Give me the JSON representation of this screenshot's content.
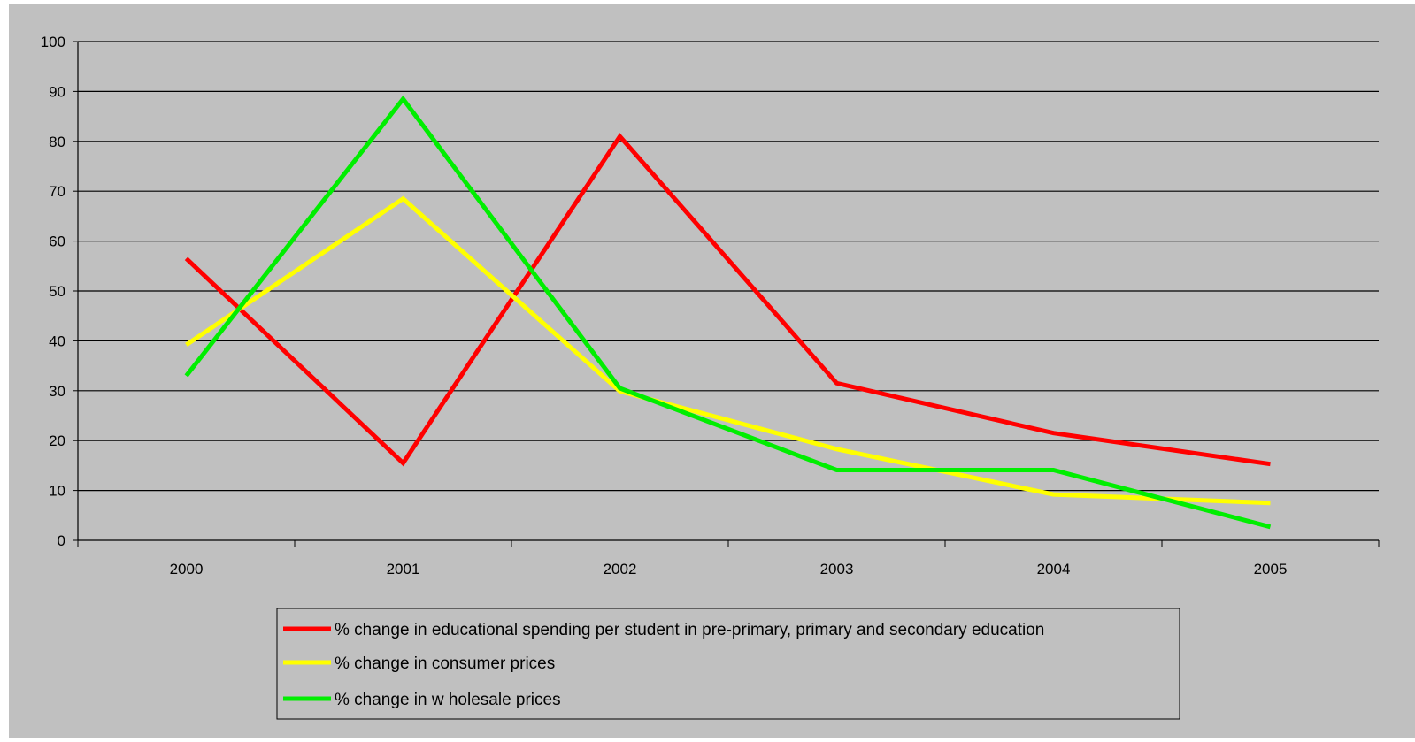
{
  "chart_data": {
    "type": "line",
    "categories": [
      "2000",
      "2001",
      "2002",
      "2003",
      "2004",
      "2005"
    ],
    "ylim": [
      0,
      100
    ],
    "yticks": [
      0,
      10,
      20,
      30,
      40,
      50,
      60,
      70,
      80,
      90,
      100
    ],
    "grid": true,
    "legend_position": "bottom",
    "plot_background": "#c0c0c0",
    "series": [
      {
        "name": "% change in educational spending per student in pre-primary, primary and secondary education",
        "color": "#ff0000",
        "values": [
          56.5,
          15.5,
          81.0,
          31.5,
          21.5,
          15.3
        ]
      },
      {
        "name": "% change in consumer prices",
        "color": "#ffff00",
        "values": [
          39.2,
          68.5,
          29.9,
          18.3,
          9.2,
          7.5
        ]
      },
      {
        "name": "% change in w holesale prices",
        "color": "#00ee00",
        "values": [
          33.0,
          88.5,
          30.5,
          14.1,
          14.1,
          2.7
        ]
      }
    ]
  }
}
